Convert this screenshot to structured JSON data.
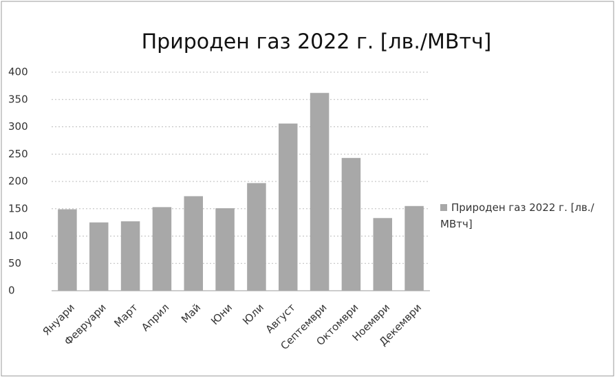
{
  "chart_data": {
    "type": "bar",
    "title": "Природен газ 2022 г. [лв./МВтч]",
    "categories": [
      "Януари",
      "Февруари",
      "Март",
      "Април",
      "Май",
      "Юни",
      "Юли",
      "Август",
      "Септември",
      "Октомври",
      "Ноември",
      "Декември"
    ],
    "series": [
      {
        "name": "Природен газ 2022 г. [лв./МВтч]",
        "color": "#a8a8a8",
        "values": [
          149,
          125,
          127,
          153,
          173,
          151,
          197,
          306,
          362,
          243,
          133,
          155
        ]
      }
    ],
    "ylim": [
      0,
      400
    ],
    "yticks": [
      0,
      50,
      100,
      150,
      200,
      250,
      300,
      350,
      400
    ],
    "grid": true,
    "legend": "right"
  }
}
